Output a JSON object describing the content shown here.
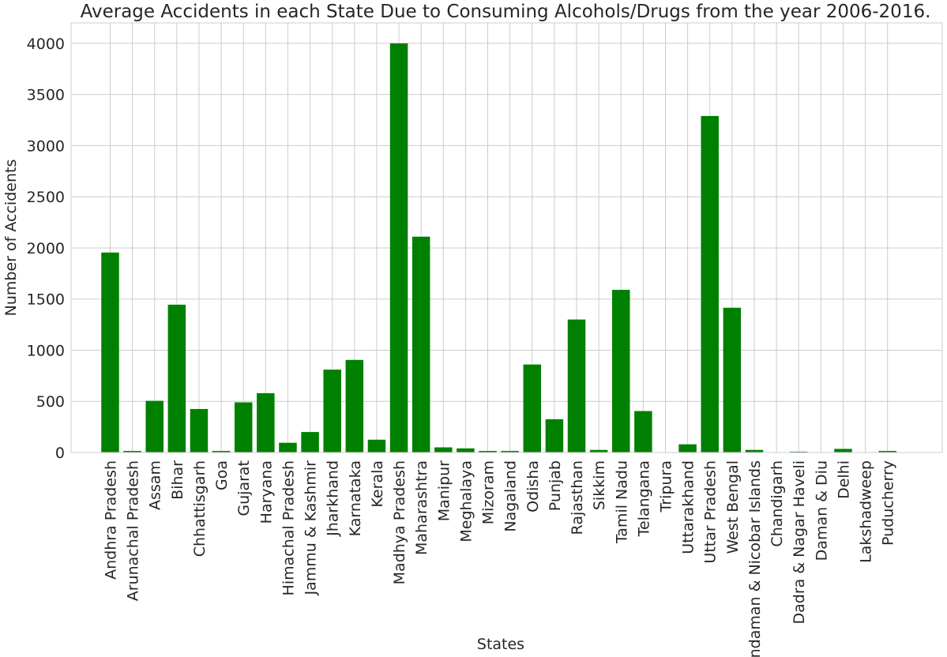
{
  "chart_data": {
    "type": "bar",
    "title": "Average Accidents in each State Due to Consuming Alcohols/Drugs from the year 2006-2016.",
    "xlabel": "States",
    "ylabel": "Number of Accidents",
    "ylim": [
      0,
      4200
    ],
    "yticks": [
      0,
      500,
      1000,
      1500,
      2000,
      2500,
      3000,
      3500,
      4000
    ],
    "grid": true,
    "bar_color": "#008000",
    "categories": [
      "Andhra Pradesh",
      "Arunachal Pradesh",
      "Assam",
      "Bihar",
      "Chhattisgarh",
      "Goa",
      "Gujarat",
      "Haryana",
      "Himachal Pradesh",
      "Jammu & Kashmir",
      "Jharkhand",
      "Karnataka",
      "Kerala",
      "Madhya Pradesh",
      "Maharashtra",
      "Manipur",
      "Meghalaya",
      "Mizoram",
      "Nagaland",
      "Odisha",
      "Punjab",
      "Rajasthan",
      "Sikkim",
      "Tamil Nadu",
      "Telangana",
      "Tripura",
      "Uttarakhand",
      "Uttar Pradesh",
      "West Bengal",
      "Andaman & Nicobar Islands",
      "Chandigarh",
      "Dadra & Nagar Haveli",
      "Daman & Diu",
      "Delhi",
      "Lakshadweep",
      "Puducherry"
    ],
    "values": [
      1955,
      15,
      505,
      1445,
      425,
      15,
      490,
      580,
      95,
      200,
      810,
      905,
      125,
      4000,
      2110,
      50,
      40,
      15,
      15,
      860,
      325,
      1300,
      25,
      1590,
      405,
      0,
      80,
      3290,
      1415,
      25,
      0,
      8,
      0,
      35,
      0,
      15
    ]
  }
}
